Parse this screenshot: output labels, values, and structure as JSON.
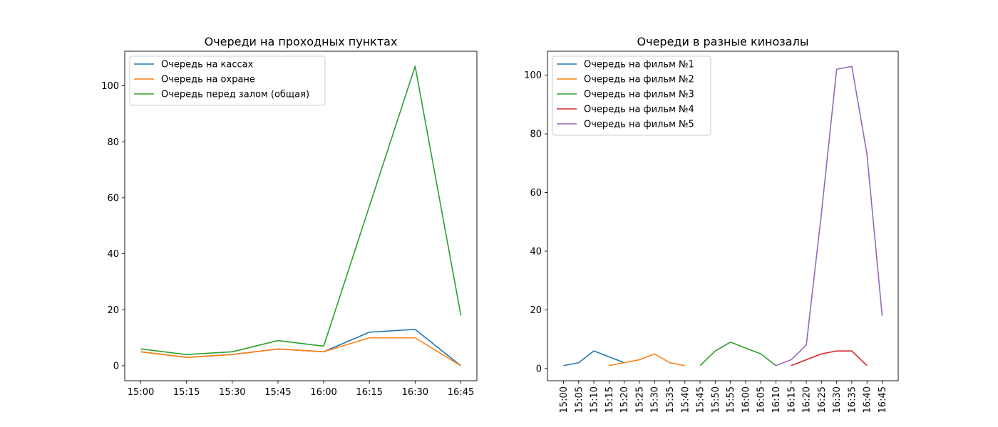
{
  "chart_data": [
    {
      "type": "line",
      "title": "Очереди на проходных пунктах",
      "xlabel": "",
      "ylabel": "",
      "categories": [
        "15:00",
        "15:15",
        "15:30",
        "15:45",
        "16:00",
        "16:15",
        "16:30",
        "16:45"
      ],
      "ylim": [
        -5.35,
        112.35
      ],
      "yticks": [
        0,
        20,
        40,
        60,
        80,
        100
      ],
      "grid": false,
      "legend": "top-left",
      "series": [
        {
          "name": "Очередь на кассах",
          "color": "#1f77b4",
          "values": [
            5,
            3,
            4,
            6,
            5,
            12,
            13,
            0
          ]
        },
        {
          "name": "Очередь на охране",
          "color": "#ff7f0e",
          "values": [
            5,
            3,
            4,
            6,
            5,
            10,
            10,
            0
          ]
        },
        {
          "name": "Очередь перед залом (общая)",
          "color": "#2ca02c",
          "values": [
            6,
            4,
            5,
            9,
            7,
            57,
            107,
            18
          ]
        }
      ]
    },
    {
      "type": "line",
      "title": "Очереди в разные кинозалы",
      "xlabel": "",
      "ylabel": "",
      "categories": [
        "15:00",
        "15:05",
        "15:10",
        "15:15",
        "15:20",
        "15:25",
        "15:30",
        "15:35",
        "15:40",
        "15:45",
        "15:50",
        "15:55",
        "16:00",
        "16:05",
        "16:10",
        "16:15",
        "16:20",
        "16:25",
        "16:30",
        "16:35",
        "16:40",
        "16:45"
      ],
      "ylim": [
        -4.15,
        108.15
      ],
      "yticks": [
        0,
        20,
        40,
        60,
        80,
        100
      ],
      "grid": false,
      "legend": "top-left",
      "series": [
        {
          "name": "Очередь на фильм №1",
          "color": "#1f77b4",
          "values": [
            1,
            2,
            6,
            4,
            2,
            null,
            null,
            null,
            null,
            null,
            null,
            null,
            null,
            null,
            null,
            null,
            null,
            null,
            null,
            null,
            null,
            null
          ]
        },
        {
          "name": "Очередь на фильм №2",
          "color": "#ff7f0e",
          "values": [
            null,
            null,
            null,
            1,
            2,
            3,
            5,
            2,
            1,
            null,
            null,
            null,
            null,
            null,
            null,
            null,
            null,
            null,
            null,
            null,
            null,
            null
          ]
        },
        {
          "name": "Очередь на фильм №3",
          "color": "#2ca02c",
          "values": [
            null,
            null,
            null,
            null,
            null,
            null,
            null,
            null,
            null,
            1,
            6,
            9,
            7,
            5,
            1,
            null,
            null,
            null,
            null,
            null,
            null,
            null
          ]
        },
        {
          "name": "Очередь на фильм №4",
          "color": "#d62728",
          "values": [
            null,
            null,
            null,
            null,
            null,
            null,
            null,
            null,
            null,
            null,
            null,
            null,
            null,
            null,
            null,
            1,
            3,
            5,
            6,
            6,
            1,
            null
          ]
        },
        {
          "name": "Очередь на фильм №5",
          "color": "#9467bd",
          "values": [
            null,
            null,
            null,
            null,
            null,
            null,
            null,
            null,
            null,
            null,
            null,
            null,
            null,
            null,
            1,
            3,
            8,
            53,
            102,
            103,
            73,
            18
          ]
        }
      ]
    }
  ]
}
